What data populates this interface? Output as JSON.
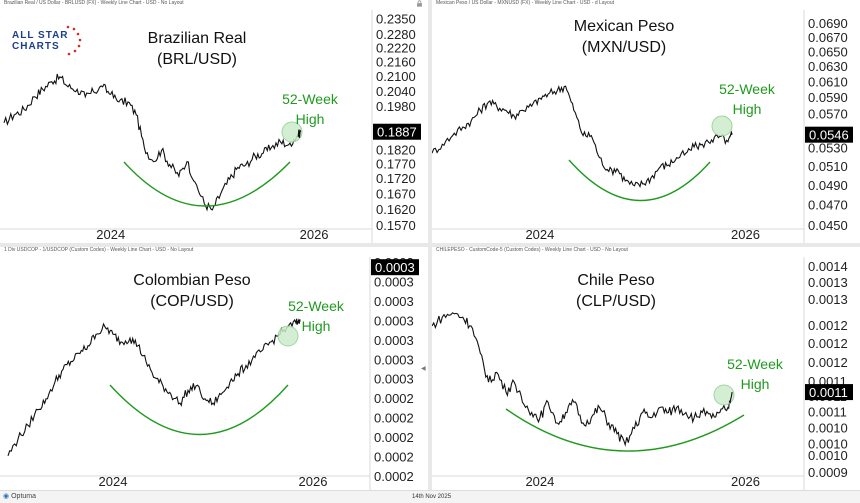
{
  "logo": {
    "line1": "ALL STAR",
    "line2": "CHARTS"
  },
  "footer": {
    "brand": "Optuma",
    "date": "14th Nov 2025"
  },
  "panels": [
    {
      "caption": "Brazilian Real / US Dollar - BRLUSD (FX) - Weekly Line Chart - USD - No Layout",
      "title_line1": "Brazilian Real",
      "title_line2": "(BRL/USD)",
      "annotation_line1": "52-Week",
      "annotation_line2": "High",
      "price_label": "0.1887"
    },
    {
      "caption": "Mexican Peso / US Dollar - MXNUSD (FX) - Weekly Line Chart - USD - d Layout",
      "title_line1": "Mexican Peso",
      "title_line2": "(MXN/USD)",
      "annotation_line1": "52-Week",
      "annotation_line2": "High",
      "price_label": "0.0546"
    },
    {
      "caption": "1 Div USDCOP - 1/USDCOP (Custom Codes) - Weekly Line Chart - USD - No Layout",
      "title_line1": "Colombian Peso",
      "title_line2": "(COP/USD)",
      "annotation_line1": "52-Week",
      "annotation_line2": "High",
      "price_label": "0.0003"
    },
    {
      "caption": "CHILEPESO - CustomCode-5 (Custom Codes) - Weekly Line Chart - USD - No Layout",
      "title_line1": "Chile Peso",
      "title_line2": "(CLP/USD)",
      "annotation_line1": "52-Week",
      "annotation_line2": "High",
      "price_label": "0.0011"
    }
  ],
  "colors": {
    "line": "#111111",
    "annotation": "#1f9a1f",
    "highlight_fill": "#cdeccd",
    "price_box": "#000000",
    "axis_text": "#222222"
  },
  "chart_data": [
    {
      "type": "line",
      "title": "Brazilian Real (BRL/USD)",
      "x_tick_labels": [
        "2024",
        "2026"
      ],
      "x_tick_positions": [
        2024,
        2026
      ],
      "x_range": [
        2022.95,
        2026.55
      ],
      "y_tick_labels": [
        "0.2350",
        "0.2280",
        "0.2220",
        "0.2160",
        "0.2100",
        "0.2040",
        "0.1980",
        "0.1887",
        "0.1820",
        "0.1770",
        "0.1720",
        "0.1670",
        "0.1620",
        "0.1570"
      ],
      "y_tick_values": [
        0.235,
        0.228,
        0.222,
        0.216,
        0.21,
        0.204,
        0.198,
        0.1887,
        0.182,
        0.177,
        0.172,
        0.167,
        0.162,
        0.157
      ],
      "ylim": [
        0.157,
        0.2365
      ],
      "scale": "log",
      "last_value": 0.1887,
      "x": [
        2022.95,
        2023.05,
        2023.15,
        2023.25,
        2023.33,
        2023.42,
        2023.5,
        2023.58,
        2023.67,
        2023.75,
        2023.83,
        2023.92,
        2024.0,
        2024.08,
        2024.17,
        2024.25,
        2024.33,
        2024.42,
        2024.5,
        2024.58,
        2024.67,
        2024.75,
        2024.83,
        2024.92,
        2025.0,
        2025.08,
        2025.17,
        2025.25,
        2025.33,
        2025.42,
        2025.5,
        2025.58,
        2025.67,
        2025.75,
        2025.83,
        2025.87
      ],
      "values": [
        0.192,
        0.195,
        0.197,
        0.202,
        0.205,
        0.208,
        0.21,
        0.206,
        0.205,
        0.202,
        0.204,
        0.206,
        0.203,
        0.2,
        0.2,
        0.195,
        0.183,
        0.178,
        0.182,
        0.177,
        0.173,
        0.178,
        0.171,
        0.164,
        0.162,
        0.167,
        0.172,
        0.176,
        0.177,
        0.18,
        0.181,
        0.183,
        0.185,
        0.184,
        0.187,
        0.1887
      ]
    },
    {
      "type": "line",
      "title": "Mexican Peso (MXN/USD)",
      "x_tick_labels": [
        "2024",
        "2026"
      ],
      "x_tick_positions": [
        2024,
        2026
      ],
      "x_range": [
        2022.95,
        2026.55
      ],
      "y_tick_labels": [
        "0.0690",
        "0.0670",
        "0.0650",
        "0.0630",
        "0.0610",
        "0.0590",
        "0.0570",
        "0.0546",
        "0.0530",
        "0.0510",
        "0.0490",
        "0.0470",
        "0.0450"
      ],
      "y_tick_values": [
        0.069,
        0.067,
        0.065,
        0.063,
        0.061,
        0.059,
        0.057,
        0.0546,
        0.053,
        0.051,
        0.049,
        0.047,
        0.045
      ],
      "ylim": [
        0.045,
        0.0705
      ],
      "scale": "log",
      "last_value": 0.0546,
      "x": [
        2022.95,
        2023.05,
        2023.15,
        2023.25,
        2023.33,
        2023.42,
        2023.5,
        2023.58,
        2023.67,
        2023.75,
        2023.83,
        2023.92,
        2024.0,
        2024.08,
        2024.17,
        2024.25,
        2024.33,
        2024.42,
        2024.5,
        2024.58,
        2024.67,
        2024.75,
        2024.83,
        2024.92,
        2025.0,
        2025.08,
        2025.17,
        2025.25,
        2025.33,
        2025.42,
        2025.5,
        2025.58,
        2025.67,
        2025.75,
        2025.83,
        2025.87
      ],
      "values": [
        0.0525,
        0.0535,
        0.0545,
        0.0555,
        0.0562,
        0.0575,
        0.0585,
        0.058,
        0.0575,
        0.0568,
        0.0575,
        0.058,
        0.059,
        0.0595,
        0.06,
        0.0605,
        0.0575,
        0.0545,
        0.0545,
        0.052,
        0.0505,
        0.0508,
        0.0495,
        0.049,
        0.0492,
        0.0498,
        0.051,
        0.0512,
        0.052,
        0.0525,
        0.0532,
        0.0535,
        0.054,
        0.0544,
        0.0538,
        0.0546
      ]
    },
    {
      "type": "line",
      "title": "Colombian Peso (COP/USD)",
      "x_tick_labels": [
        "2024",
        "2026"
      ],
      "x_tick_positions": [
        2024,
        2026
      ],
      "x_range": [
        2022.95,
        2026.55
      ],
      "y_tick_labels": [
        "0.0003",
        "0.0003",
        "0.0003",
        "0.0003",
        "0.0003",
        "0.0003",
        "0.0003",
        "0.0002",
        "0.0002",
        "0.0002",
        "0.0002",
        "0.0002"
      ],
      "scale": "log",
      "last_value": 0.0003,
      "x": [
        2022.95,
        2023.05,
        2023.15,
        2023.25,
        2023.33,
        2023.42,
        2023.5,
        2023.58,
        2023.67,
        2023.75,
        2023.83,
        2023.92,
        2024.0,
        2024.08,
        2024.17,
        2024.25,
        2024.33,
        2024.42,
        2024.5,
        2024.58,
        2024.67,
        2024.75,
        2024.83,
        2024.92,
        2025.0,
        2025.08,
        2025.17,
        2025.25,
        2025.33,
        2025.42,
        2025.5,
        2025.58,
        2025.67,
        2025.75,
        2025.83,
        2025.87
      ],
      "values": [
        0.000205,
        0.000212,
        0.000218,
        0.000225,
        0.00023,
        0.000238,
        0.000244,
        0.000248,
        0.000252,
        0.000256,
        0.000262,
        0.000266,
        0.000262,
        0.000258,
        0.00026,
        0.000256,
        0.000248,
        0.00024,
        0.000236,
        0.000232,
        0.000228,
        0.000234,
        0.000236,
        0.00023,
        0.000228,
        0.000232,
        0.000238,
        0.000242,
        0.000246,
        0.00025,
        0.000254,
        0.000258,
        0.000262,
        0.000266,
        0.000268,
        0.00027
      ]
    },
    {
      "type": "line",
      "title": "Chile Peso (CLP/USD)",
      "x_tick_labels": [
        "2024",
        "2026"
      ],
      "x_tick_positions": [
        2024,
        2026
      ],
      "x_range": [
        2022.95,
        2026.55
      ],
      "y_tick_labels": [
        "0.0014",
        "0.0013",
        "0.0013",
        "0.0012",
        "0.0012",
        "0.0012",
        "0.0011",
        "0.0011",
        "0.0011",
        "0.0010",
        "0.0010",
        "0.0010",
        "0.0009"
      ],
      "y_tick_values": [
        0.00138,
        0.00134,
        0.0013,
        0.00124,
        0.0012,
        0.00116,
        0.00112,
        0.00109,
        0.00106,
        0.00103,
        0.001,
        0.00098,
        0.00095
      ],
      "ylim": [
        0.00095,
        0.0014
      ],
      "scale": "log",
      "last_value": 0.0011,
      "x": [
        2022.95,
        2023.05,
        2023.15,
        2023.25,
        2023.33,
        2023.42,
        2023.5,
        2023.58,
        2023.67,
        2023.75,
        2023.83,
        2023.92,
        2024.0,
        2024.08,
        2024.17,
        2024.25,
        2024.33,
        2024.42,
        2024.5,
        2024.58,
        2024.67,
        2024.75,
        2024.83,
        2024.92,
        2025.0,
        2025.08,
        2025.17,
        2025.25,
        2025.33,
        2025.42,
        2025.5,
        2025.58,
        2025.67,
        2025.75,
        2025.83,
        2025.87
      ],
      "values": [
        0.00124,
        0.00126,
        0.00127,
        0.00126,
        0.00124,
        0.00118,
        0.00112,
        0.00114,
        0.0011,
        0.00112,
        0.00108,
        0.00106,
        0.00105,
        0.00108,
        0.00104,
        0.00106,
        0.00108,
        0.00104,
        0.00105,
        0.00107,
        0.00104,
        0.00102,
        0.001,
        0.00103,
        0.00106,
        0.00105,
        0.00107,
        0.00106,
        0.00107,
        0.00106,
        0.00105,
        0.00106,
        0.00105,
        0.00106,
        0.00107,
        0.0011
      ]
    }
  ]
}
